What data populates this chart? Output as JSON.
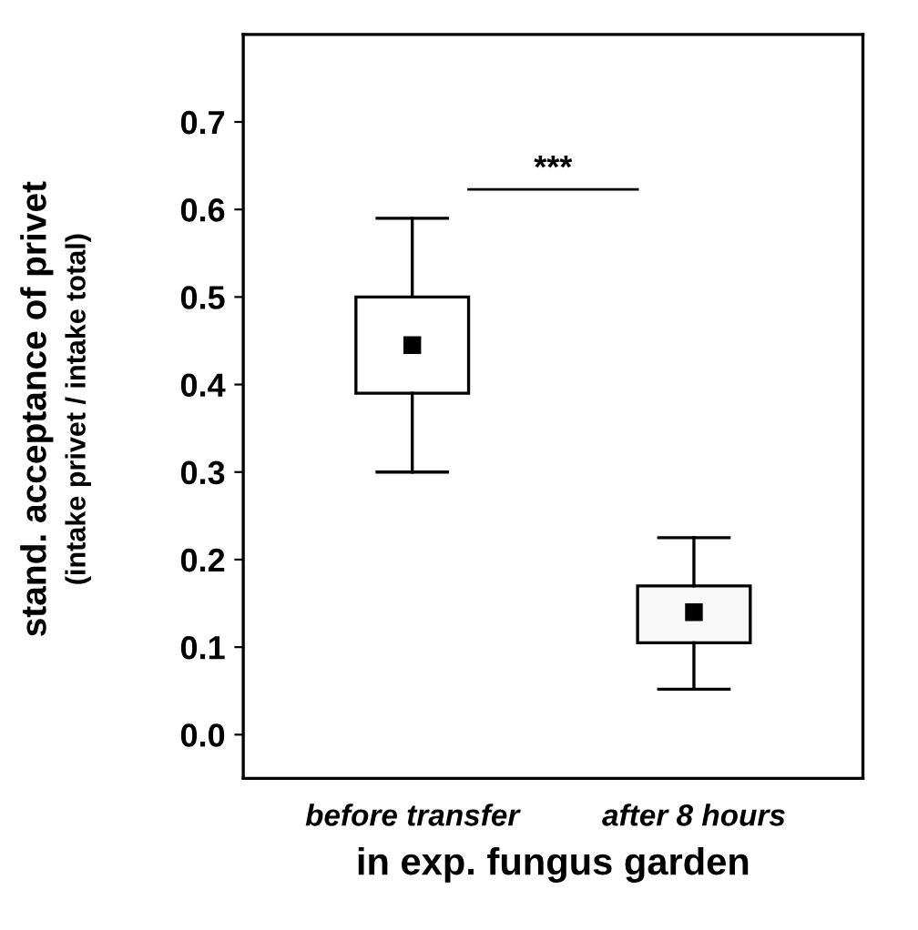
{
  "chart_data": {
    "type": "box",
    "categories": [
      "before transfer",
      "after 8 hours"
    ],
    "boxes": [
      {
        "low": 0.3,
        "q1": 0.39,
        "median": 0.445,
        "q3": 0.5,
        "high": 0.59
      },
      {
        "low": 0.052,
        "q1": 0.105,
        "median": 0.14,
        "q3": 0.17,
        "high": 0.225
      }
    ],
    "colors": [
      "#ffffff",
      "#f8f8f8"
    ],
    "ylabel": "stand. acceptance of privet\n(intake privet / intake total)",
    "xlabel": "in exp. fungus garden",
    "ylim": [
      -0.05,
      0.8
    ],
    "yticks": [
      {
        "value": 0,
        "label": "0.0"
      },
      0.1,
      0.2,
      0.3,
      0.4,
      0.5,
      0.6,
      0.7
    ],
    "annotations": [
      "***"
    ],
    "grid": false,
    "legend": false
  }
}
